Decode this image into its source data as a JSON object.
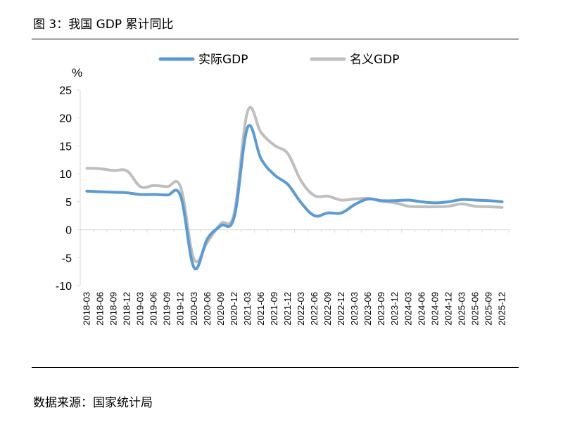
{
  "figure": {
    "title": "图 3：我国 GDP 累计同比",
    "source": "数据来源：国家统计局"
  },
  "chart_data": {
    "type": "line",
    "title": "图 3：我国 GDP 累计同比",
    "ylabel": "%",
    "xlabel": "",
    "ylim": [
      -10,
      25
    ],
    "yticks": [
      25,
      20,
      15,
      10,
      5,
      0,
      -5,
      -10
    ],
    "yticks_labels": [
      "25",
      "20",
      "15",
      "10",
      "5",
      "0",
      "-5",
      "-10"
    ],
    "x": [
      "2018-03",
      "2018-06",
      "2018-09",
      "2018-12",
      "2019-03",
      "2019-06",
      "2019-09",
      "2019-12",
      "2020-03",
      "2020-06",
      "2020-09",
      "2020-12",
      "2021-03",
      "2021-06",
      "2021-09",
      "2021-12",
      "2022-03",
      "2022-06",
      "2022-09",
      "2022-12",
      "2023-03",
      "2023-06",
      "2023-09",
      "2023-12",
      "2024-03",
      "2024-06",
      "2024-09",
      "2024-12",
      "2025-03",
      "2025-06",
      "2025-09",
      "2025-12"
    ],
    "legend_position": "top",
    "series": [
      {
        "name": "实际GDP",
        "color": "#5b9bd5",
        "values": [
          6.9,
          6.8,
          6.7,
          6.6,
          6.3,
          6.3,
          6.2,
          6.0,
          -6.8,
          -1.6,
          0.7,
          2.3,
          18.3,
          12.7,
          9.8,
          8.1,
          4.8,
          2.5,
          3.0,
          3.0,
          4.5,
          5.5,
          5.2,
          5.2,
          5.3,
          5.0,
          4.8,
          5.0,
          5.4,
          5.3,
          5.2,
          5.0
        ]
      },
      {
        "name": "名义GDP",
        "color": "#bfbfbf",
        "values": [
          11.0,
          10.9,
          10.6,
          10.5,
          7.7,
          7.9,
          7.7,
          7.6,
          -5.3,
          -2.2,
          1.1,
          3.0,
          21.2,
          17.4,
          15.1,
          13.6,
          8.7,
          6.1,
          6.0,
          5.3,
          5.5,
          5.6,
          5.1,
          4.8,
          4.2,
          4.1,
          4.1,
          4.2,
          4.6,
          4.2,
          4.1,
          4.0
        ]
      }
    ]
  }
}
